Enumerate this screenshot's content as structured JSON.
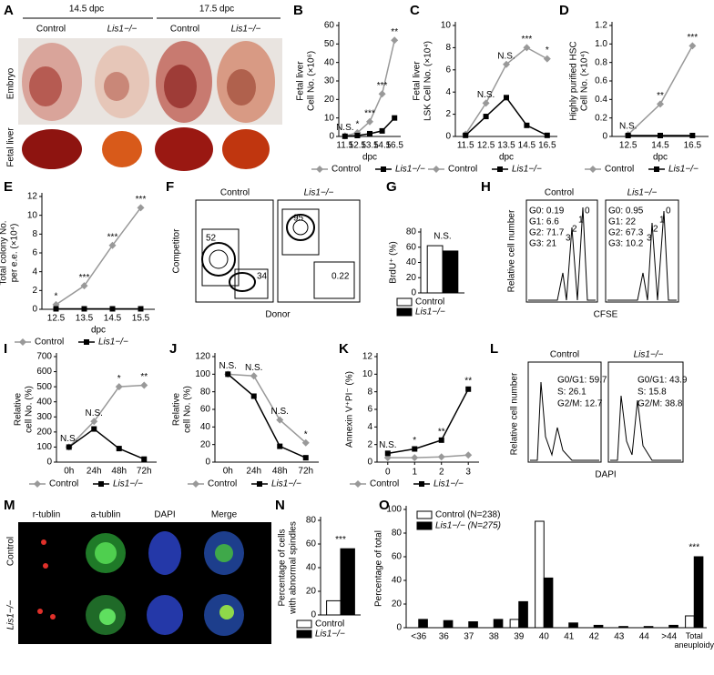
{
  "images": {
    "A": {
      "panel": "A",
      "groups": [
        "14.5 dpc",
        "17.5 dpc"
      ],
      "columns": [
        "Control",
        "Lis1−/−",
        "Control",
        "Lis1−/−"
      ],
      "rows": [
        "Embryo",
        "Fetal liver"
      ]
    },
    "F": {
      "panel": "F",
      "titles": [
        "Control",
        "Lis1−/−"
      ],
      "ylabel": "Competitor",
      "xlabel": "Donor",
      "gates": [
        [
          52,
          34
        ],
        [
          95,
          0.22
        ]
      ]
    },
    "H": {
      "panel": "H",
      "titles": [
        "Control",
        "Lis1−/−"
      ],
      "ylabel": "Relative cell number",
      "xlabel": "CFSE",
      "peaks": [
        "0",
        "1",
        "2",
        "3"
      ],
      "stats": [
        [
          "G0: 0.19",
          "G1: 6.6",
          "G2: 71.7",
          "G3: 21"
        ],
        [
          "G0: 0.95",
          "G1: 22",
          "G2: 67.3",
          "G3: 10.2"
        ]
      ]
    },
    "L": {
      "panel": "L",
      "titles": [
        "Control",
        "Lis1−/−"
      ],
      "ylabel": "Relative cell number",
      "xlabel": "DAPI",
      "stats": [
        [
          "G0/G1: 59.7",
          "S: 26.1",
          "G2/M: 12.7"
        ],
        [
          "G0/G1: 43.9",
          "S: 15.8",
          "G2/M: 38.8"
        ]
      ]
    },
    "M": {
      "panel": "M",
      "columns": [
        "r-tublin",
        "a-tublin",
        "DAPI",
        "Merge"
      ],
      "rows": [
        "Control",
        "Lis1−/−"
      ]
    }
  },
  "chart_data": [
    {
      "type": "line",
      "panel": "B",
      "ylabel": [
        "Fetal liver",
        "Cell No. (×10⁶)"
      ],
      "xlabel": "dpc",
      "categories": [
        "11.5",
        "12.5",
        "13.5",
        "14.5",
        "16.5"
      ],
      "ylim": [
        0,
        60
      ],
      "yticks": [
        0,
        10,
        20,
        30,
        40,
        50,
        60
      ],
      "series": [
        {
          "name": "Control",
          "color": "#999999",
          "marker": "diamond",
          "values": [
            0.3,
            2,
            8,
            23,
            52
          ]
        },
        {
          "name": "Lis1−/−",
          "color": "#000000",
          "marker": "square",
          "values": [
            0.1,
            0.5,
            1.5,
            3,
            10
          ]
        }
      ],
      "annotations": [
        "N.S.",
        "*",
        "***",
        "***",
        "**"
      ]
    },
    {
      "type": "line",
      "panel": "C",
      "ylabel": [
        "Fetal liver",
        "LSK Cell No. (×10⁴)"
      ],
      "xlabel": "dpc",
      "categories": [
        "11.5",
        "12.5",
        "13.5",
        "14.5",
        "16.5"
      ],
      "ylim": [
        0,
        10
      ],
      "yticks": [
        0,
        2,
        4,
        6,
        8,
        10
      ],
      "series": [
        {
          "name": "Control",
          "color": "#999999",
          "marker": "diamond",
          "values": [
            0.2,
            3,
            6.5,
            8,
            7
          ]
        },
        {
          "name": "Lis1−/−",
          "color": "#000000",
          "marker": "square",
          "values": [
            0.1,
            1.8,
            3.5,
            1,
            0.1
          ]
        }
      ],
      "annotations": [
        "",
        "N.S.",
        "N.S.",
        "***",
        "*"
      ]
    },
    {
      "type": "line",
      "panel": "D",
      "ylabel": [
        "Highly purified HSC",
        "Cell No. (×10⁴)"
      ],
      "xlabel": "dpc",
      "categories": [
        "12.5",
        "14.5",
        "16.5"
      ],
      "ylim": [
        0,
        1.2
      ],
      "yticks": [
        0,
        0.2,
        0.4,
        0.6,
        0.8,
        {
          "value": 1,
          "label": "1.0"
        },
        1.2
      ],
      "series": [
        {
          "name": "Control",
          "color": "#999999",
          "marker": "diamond",
          "values": [
            0.02,
            0.35,
            0.98
          ]
        },
        {
          "name": "Lis1−/−",
          "color": "#000000",
          "marker": "square",
          "values": [
            0.01,
            0.01,
            0.01
          ]
        }
      ],
      "annotations": [
        "N.S.",
        "**",
        "***"
      ]
    },
    {
      "type": "line",
      "panel": "E",
      "ylabel": [
        "Total colony No.",
        "per e.e. (×10⁴)"
      ],
      "xlabel": "dpc",
      "categories": [
        "12.5",
        "13.5",
        "14.5",
        "15.5"
      ],
      "ylim": [
        0,
        12
      ],
      "yticks": [
        0,
        2,
        4,
        6,
        8,
        10,
        12
      ],
      "series": [
        {
          "name": "Control",
          "color": "#999999",
          "marker": "diamond",
          "values": [
            0.5,
            2.5,
            6.8,
            10.8
          ]
        },
        {
          "name": "Lis1−/−",
          "color": "#000000",
          "marker": "square",
          "values": [
            0.05,
            0.05,
            0.05,
            0.05
          ]
        }
      ],
      "annotations": [
        "*",
        "***",
        "***",
        "***"
      ]
    },
    {
      "type": "bar",
      "panel": "G",
      "ylabel": [
        "BrdU⁺ (%)"
      ],
      "categories": [
        null
      ],
      "ylim": [
        0,
        80
      ],
      "yticks": [
        0,
        20,
        40,
        60,
        80
      ],
      "series": [
        {
          "name": "Control",
          "color": "#ffffff",
          "values": [
            62
          ]
        },
        {
          "name": "Lis1−/−",
          "color": "#000000",
          "values": [
            55
          ]
        }
      ],
      "annotations": [
        "N.S."
      ],
      "legend": "below"
    },
    {
      "type": "line",
      "panel": "I",
      "ylabel": [
        "Relative",
        "cell No. (%)"
      ],
      "categories": [
        "0h",
        "24h",
        "48h",
        "72h"
      ],
      "ylim": [
        0,
        700
      ],
      "yticks": [
        0,
        100,
        200,
        300,
        400,
        500,
        600,
        700
      ],
      "series": [
        {
          "name": "Control",
          "color": "#999999",
          "marker": "diamond",
          "values": [
            100,
            270,
            500,
            510
          ]
        },
        {
          "name": "Lis1−/−",
          "color": "#000000",
          "marker": "square",
          "values": [
            100,
            220,
            90,
            20
          ]
        }
      ],
      "annotations": [
        "N.S.",
        "N.S.",
        "*",
        "**"
      ]
    },
    {
      "type": "line",
      "panel": "J",
      "ylabel": [
        "Relative",
        "cell No. (%)"
      ],
      "categories": [
        "0h",
        "24h",
        "48h",
        "72h"
      ],
      "ylim": [
        0,
        120
      ],
      "yticks": [
        0,
        20,
        40,
        60,
        80,
        100,
        120
      ],
      "series": [
        {
          "name": "Control",
          "color": "#999999",
          "marker": "diamond",
          "values": [
            100,
            98,
            48,
            22
          ]
        },
        {
          "name": "Lis1−/−",
          "color": "#000000",
          "marker": "square",
          "values": [
            100,
            75,
            18,
            5
          ]
        }
      ],
      "annotations": [
        "N.S.",
        "N.S.",
        "N.S.",
        "*"
      ]
    },
    {
      "type": "line",
      "panel": "K",
      "ylabel": [
        "Annexin V⁺PI⁻ (%)"
      ],
      "x": [
        0,
        1,
        2,
        3
      ],
      "xlim": [
        -0.4,
        3.4
      ],
      "xticks": [
        0,
        1,
        2,
        3
      ],
      "ylim": [
        0,
        12
      ],
      "yticks": [
        0,
        2,
        4,
        6,
        8,
        10,
        12
      ],
      "series": [
        {
          "name": "Control",
          "color": "#999999",
          "marker": "diamond",
          "values": [
            0.5,
            0.5,
            0.6,
            0.8
          ]
        },
        {
          "name": "Lis1−/−",
          "color": "#000000",
          "marker": "square",
          "values": [
            1,
            1.5,
            2.5,
            8.3
          ]
        }
      ],
      "annotations": [
        "N.S.",
        "*",
        "**",
        "**"
      ]
    },
    {
      "type": "bar",
      "panel": "N",
      "ylabel": [
        "Percentage of cells",
        "with abnormal spindles"
      ],
      "categories": [
        null
      ],
      "ylim": [
        0,
        80
      ],
      "yticks": [
        0,
        20,
        40,
        60,
        80
      ],
      "series": [
        {
          "name": "Control",
          "color": "#ffffff",
          "values": [
            12
          ]
        },
        {
          "name": "Lis1−/−",
          "color": "#000000",
          "values": [
            56
          ]
        }
      ],
      "annotations": [
        "***"
      ],
      "legend": "below"
    },
    {
      "type": "bar",
      "panel": "O",
      "ylabel": [
        "Percentage of total"
      ],
      "categories": [
        "<36",
        "36",
        "37",
        "38",
        "39",
        "40",
        "41",
        "42",
        "43",
        "44",
        ">44",
        "Total aneuploidy"
      ],
      "ylim": [
        0,
        100
      ],
      "yticks": [
        0,
        20,
        40,
        60,
        80,
        100
      ],
      "series": [
        {
          "name": "Control (N=238)",
          "color": "#ffffff",
          "values": [
            0,
            0,
            0,
            0,
            7,
            90,
            0,
            0,
            0,
            0,
            0,
            10
          ]
        },
        {
          "name": "Lis1−/− (N=275)",
          "color": "#000000",
          "values": [
            7,
            6,
            5,
            7,
            22,
            42,
            4,
            2,
            1,
            1,
            2,
            60
          ]
        }
      ],
      "annotations": [
        "",
        "",
        "",
        "",
        "",
        "",
        "",
        "",
        "",
        "",
        "",
        "***"
      ],
      "legend": "upper left"
    }
  ]
}
